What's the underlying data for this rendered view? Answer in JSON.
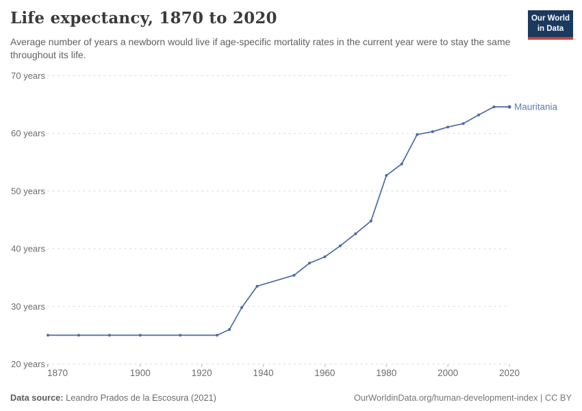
{
  "header": {
    "title": "Life expectancy, 1870 to 2020",
    "subtitle": "Average number of years a newborn would live if age-specific mortality rates in the current year were to stay the same throughout its life.",
    "logo": {
      "line1": "Our World",
      "line2": "in Data",
      "bg_color": "#1a3a5f",
      "stripe_color": "#d0403a"
    }
  },
  "chart_data": {
    "type": "line",
    "title": "Life expectancy, 1870 to 2020",
    "xlabel": "",
    "ylabel": "",
    "xlim": [
      1870,
      2020
    ],
    "ylim": [
      20,
      70
    ],
    "grid": true,
    "gridline_color": "#d9d9d9",
    "tick_label_color": "#6b6b6b",
    "x_ticks": [
      1870,
      1900,
      1920,
      1940,
      1960,
      1980,
      2000,
      2020
    ],
    "y_ticks": [
      70,
      60,
      50,
      40,
      30,
      20
    ],
    "y_tick_suffix": " years",
    "legend_position": "end-of-line-label",
    "series": [
      {
        "name": "Mauritania",
        "color": "#4a69a3",
        "label_color": "#5d7ca9",
        "x": [
          1870,
          1880,
          1890,
          1900,
          1913,
          1925,
          1929,
          1933,
          1938,
          1950,
          1955,
          1960,
          1965,
          1970,
          1975,
          1980,
          1985,
          1990,
          1995,
          2000,
          2005,
          2010,
          2015,
          2020
        ],
        "values": [
          25.0,
          25.0,
          25.0,
          25.0,
          25.0,
          25.0,
          26.0,
          29.8,
          33.5,
          35.4,
          37.5,
          38.6,
          40.5,
          42.6,
          44.8,
          52.7,
          54.7,
          59.8,
          60.3,
          61.1,
          61.7,
          63.2,
          64.6,
          64.6
        ]
      }
    ]
  },
  "footer": {
    "source_label": "Data source:",
    "source_text": " Leandro Prados de la Escosura (2021)",
    "credit": "OurWorldinData.org/human-development-index | CC BY"
  }
}
